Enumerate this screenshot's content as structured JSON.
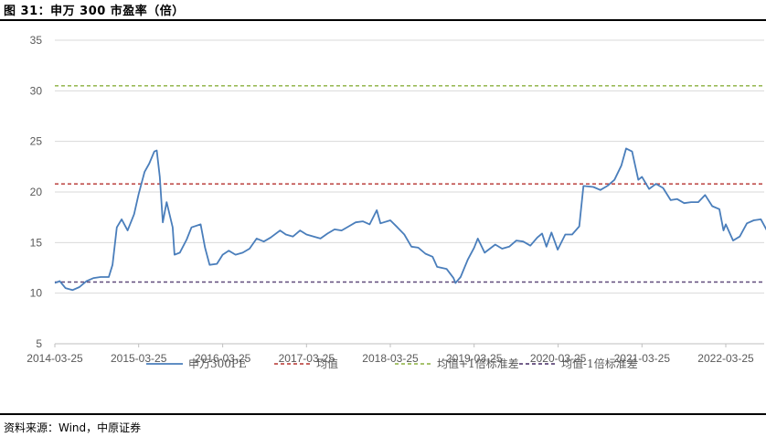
{
  "title": "图 31：申万 300 市盈率（倍）",
  "source": "资料来源：Wind，中原证券",
  "chart_data": {
    "type": "line",
    "title": "",
    "xlabel": "",
    "ylabel": "",
    "ylim": [
      5,
      35
    ],
    "yticks": [
      5,
      10,
      15,
      20,
      25,
      30,
      35
    ],
    "xticks": [
      "2014-03-25",
      "2015-03-25",
      "2016-03-25",
      "2017-03-25",
      "2018-03-25",
      "2019-03-25",
      "2020-03-25",
      "2021-03-25",
      "2022-03-25"
    ],
    "x_range": [
      "2014-03-25",
      "2022-12-31"
    ],
    "grid": "horizontal",
    "legend_position": "bottom",
    "series": [
      {
        "name": "申万300PE",
        "color": "#4a7ebb",
        "style": "solid",
        "points": [
          [
            "2014-03-25",
            11.0
          ],
          [
            "2014-04-15",
            11.2
          ],
          [
            "2014-05-10",
            10.5
          ],
          [
            "2014-06-10",
            10.3
          ],
          [
            "2014-07-10",
            10.6
          ],
          [
            "2014-08-10",
            11.2
          ],
          [
            "2014-09-10",
            11.5
          ],
          [
            "2014-10-10",
            11.6
          ],
          [
            "2014-11-15",
            11.6
          ],
          [
            "2014-12-01",
            12.8
          ],
          [
            "2014-12-20",
            16.5
          ],
          [
            "2015-01-10",
            17.3
          ],
          [
            "2015-02-05",
            16.2
          ],
          [
            "2015-03-05",
            17.8
          ],
          [
            "2015-03-25",
            19.8
          ],
          [
            "2015-04-20",
            22.0
          ],
          [
            "2015-05-10",
            22.8
          ],
          [
            "2015-06-01",
            24.0
          ],
          [
            "2015-06-12",
            24.1
          ],
          [
            "2015-06-25",
            21.5
          ],
          [
            "2015-07-08",
            17.0
          ],
          [
            "2015-07-25",
            19.0
          ],
          [
            "2015-08-20",
            16.5
          ],
          [
            "2015-08-28",
            13.8
          ],
          [
            "2015-09-20",
            14.0
          ],
          [
            "2015-10-20",
            15.3
          ],
          [
            "2015-11-10",
            16.5
          ],
          [
            "2015-12-20",
            16.8
          ],
          [
            "2016-01-08",
            14.5
          ],
          [
            "2016-01-28",
            12.8
          ],
          [
            "2016-02-29",
            12.9
          ],
          [
            "2016-03-25",
            13.8
          ],
          [
            "2016-04-20",
            14.2
          ],
          [
            "2016-05-20",
            13.8
          ],
          [
            "2016-06-20",
            14.0
          ],
          [
            "2016-07-20",
            14.4
          ],
          [
            "2016-08-20",
            15.4
          ],
          [
            "2016-09-20",
            15.1
          ],
          [
            "2016-10-20",
            15.5
          ],
          [
            "2016-11-30",
            16.2
          ],
          [
            "2016-12-25",
            15.8
          ],
          [
            "2017-01-25",
            15.6
          ],
          [
            "2017-02-25",
            16.2
          ],
          [
            "2017-03-25",
            15.8
          ],
          [
            "2017-04-25",
            15.6
          ],
          [
            "2017-05-25",
            15.4
          ],
          [
            "2017-06-25",
            15.9
          ],
          [
            "2017-07-25",
            16.3
          ],
          [
            "2017-08-25",
            16.2
          ],
          [
            "2017-09-25",
            16.6
          ],
          [
            "2017-10-25",
            17.0
          ],
          [
            "2017-11-25",
            17.1
          ],
          [
            "2017-12-25",
            16.8
          ],
          [
            "2018-01-25",
            18.2
          ],
          [
            "2018-02-10",
            16.9
          ],
          [
            "2018-03-25",
            17.2
          ],
          [
            "2018-04-25",
            16.5
          ],
          [
            "2018-05-25",
            15.8
          ],
          [
            "2018-06-25",
            14.6
          ],
          [
            "2018-07-25",
            14.5
          ],
          [
            "2018-08-25",
            13.9
          ],
          [
            "2018-09-25",
            13.6
          ],
          [
            "2018-10-15",
            12.6
          ],
          [
            "2018-11-25",
            12.4
          ],
          [
            "2018-12-25",
            11.5
          ],
          [
            "2019-01-03",
            11.0
          ],
          [
            "2019-01-25",
            11.6
          ],
          [
            "2019-02-25",
            13.3
          ],
          [
            "2019-03-25",
            14.5
          ],
          [
            "2019-04-10",
            15.4
          ],
          [
            "2019-05-10",
            14.0
          ],
          [
            "2019-06-25",
            14.8
          ],
          [
            "2019-07-25",
            14.4
          ],
          [
            "2019-08-25",
            14.6
          ],
          [
            "2019-09-25",
            15.2
          ],
          [
            "2019-10-25",
            15.1
          ],
          [
            "2019-11-25",
            14.7
          ],
          [
            "2019-12-25",
            15.5
          ],
          [
            "2020-01-15",
            15.9
          ],
          [
            "2020-02-03",
            14.6
          ],
          [
            "2020-02-25",
            16.0
          ],
          [
            "2020-03-23",
            14.3
          ],
          [
            "2020-04-25",
            15.8
          ],
          [
            "2020-05-25",
            15.8
          ],
          [
            "2020-06-25",
            16.6
          ],
          [
            "2020-07-13",
            20.6
          ],
          [
            "2020-08-25",
            20.5
          ],
          [
            "2020-09-25",
            20.2
          ],
          [
            "2020-10-25",
            20.6
          ],
          [
            "2020-11-25",
            21.2
          ],
          [
            "2020-12-25",
            22.6
          ],
          [
            "2021-01-15",
            24.3
          ],
          [
            "2021-02-10",
            24.0
          ],
          [
            "2021-03-09",
            21.2
          ],
          [
            "2021-03-25",
            21.5
          ],
          [
            "2021-04-25",
            20.3
          ],
          [
            "2021-05-25",
            20.8
          ],
          [
            "2021-06-25",
            20.4
          ],
          [
            "2021-07-28",
            19.2
          ],
          [
            "2021-08-25",
            19.3
          ],
          [
            "2021-09-25",
            18.9
          ],
          [
            "2021-10-25",
            19.0
          ],
          [
            "2021-11-25",
            19.0
          ],
          [
            "2021-12-25",
            19.7
          ],
          [
            "2022-01-25",
            18.6
          ],
          [
            "2022-02-25",
            18.3
          ],
          [
            "2022-03-15",
            16.2
          ],
          [
            "2022-03-25",
            16.8
          ],
          [
            "2022-04-26",
            15.2
          ],
          [
            "2022-05-25",
            15.6
          ],
          [
            "2022-06-25",
            16.9
          ],
          [
            "2022-07-25",
            17.2
          ],
          [
            "2022-08-25",
            17.3
          ],
          [
            "2022-09-25",
            16.0
          ],
          [
            "2022-10-31",
            14.6
          ],
          [
            "2022-11-25",
            15.2
          ],
          [
            "2022-12-31",
            14.2
          ]
        ]
      },
      {
        "name": "均值",
        "color": "#c0504d",
        "style": "dashed",
        "value": 20.8
      },
      {
        "name": "均值+1倍标准差",
        "color": "#9bbb59",
        "style": "dashed",
        "value": 30.5
      },
      {
        "name": "均值-1倍标准差",
        "color": "#604a7b",
        "style": "dashed",
        "value": 11.1
      }
    ]
  }
}
